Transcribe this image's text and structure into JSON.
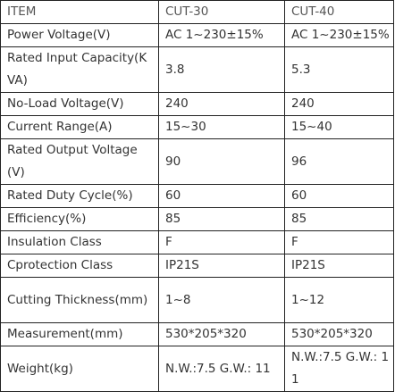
{
  "table": {
    "rows": [
      [
        "ITEM",
        "CUT-30",
        "CUT-40"
      ],
      [
        "Power Voltage(V)",
        "AC 1~230±15%",
        "AC 1~230±15%"
      ],
      [
        "Rated Input Capacity(KVA)",
        "3.8",
        "5.3"
      ],
      [
        "No-Load Voltage(V)",
        "240",
        "240"
      ],
      [
        "Current Range(A)",
        "15~30",
        "15~40"
      ],
      [
        "Rated Output Voltage(V)",
        "90",
        "96"
      ],
      [
        "Rated Duty Cycle(%)",
        "60",
        "60"
      ],
      [
        "Efficiency(%)",
        "85",
        "85"
      ],
      [
        "Insulation Class",
        "F",
        "F"
      ],
      [
        "Cprotection Class",
        "IP21S",
        "IP21S"
      ],
      [
        "Cutting Thickness(mm)",
        "1~8",
        "1~12"
      ],
      [
        "Measurement(mm)",
        "530*205*320",
        "530*205*320"
      ],
      [
        "Weight(kg)",
        "N.W.:7.5 G.W.: 11",
        "N.W.:7.5 G.W.: 11"
      ]
    ]
  }
}
